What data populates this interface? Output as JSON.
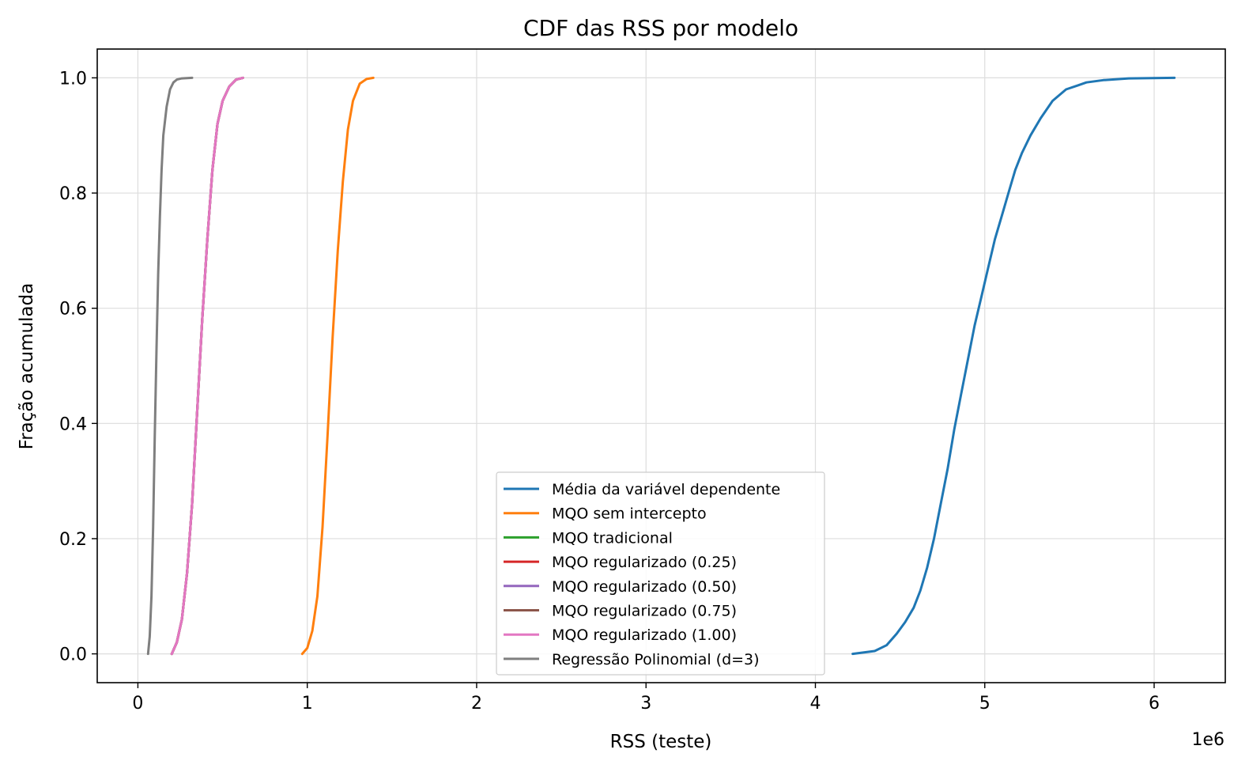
{
  "chart_data": {
    "type": "line",
    "title": "CDF das RSS por modelo",
    "xlabel": "RSS (teste)",
    "ylabel": "Fração acumulada",
    "x_offset_label": "1e6",
    "xlim": [
      -0.24,
      6.42
    ],
    "ylim": [
      -0.05,
      1.05
    ],
    "xticks": [
      0,
      1,
      2,
      3,
      4,
      5,
      6
    ],
    "xtick_labels": [
      "0",
      "1",
      "2",
      "3",
      "4",
      "5",
      "6"
    ],
    "yticks": [
      0.0,
      0.2,
      0.4,
      0.6,
      0.8,
      1.0
    ],
    "ytick_labels": [
      "0.0",
      "0.2",
      "0.4",
      "0.6",
      "0.8",
      "1.0"
    ],
    "grid": true,
    "legend_position": "lower-center",
    "series": [
      {
        "name": "Média da variável dependente",
        "color": "#1f77b4",
        "x": [
          4.22,
          4.35,
          4.42,
          4.48,
          4.53,
          4.58,
          4.62,
          4.66,
          4.7,
          4.74,
          4.78,
          4.82,
          4.86,
          4.9,
          4.94,
          4.98,
          5.02,
          5.06,
          5.1,
          5.14,
          5.18,
          5.22,
          5.27,
          5.33,
          5.4,
          5.48,
          5.55,
          5.6,
          5.7,
          5.85,
          6.12
        ],
        "y": [
          0.0,
          0.005,
          0.015,
          0.035,
          0.055,
          0.08,
          0.11,
          0.15,
          0.2,
          0.26,
          0.32,
          0.39,
          0.45,
          0.51,
          0.57,
          0.62,
          0.67,
          0.72,
          0.76,
          0.8,
          0.84,
          0.87,
          0.9,
          0.93,
          0.96,
          0.98,
          0.987,
          0.992,
          0.996,
          0.999,
          1.0
        ]
      },
      {
        "name": "MQO sem intercepto",
        "color": "#ff7f0e",
        "x": [
          0.97,
          1.0,
          1.03,
          1.06,
          1.09,
          1.12,
          1.15,
          1.18,
          1.21,
          1.24,
          1.27,
          1.31,
          1.35,
          1.39
        ],
        "y": [
          0.0,
          0.01,
          0.04,
          0.1,
          0.22,
          0.38,
          0.55,
          0.7,
          0.82,
          0.91,
          0.96,
          0.99,
          0.998,
          1.0
        ]
      },
      {
        "name": "MQO tradicional",
        "color": "#2ca02c",
        "x": [
          0.2,
          0.23,
          0.26,
          0.29,
          0.32,
          0.35,
          0.38,
          0.41,
          0.44,
          0.47,
          0.5,
          0.54,
          0.58,
          0.62
        ],
        "y": [
          0.0,
          0.02,
          0.06,
          0.14,
          0.26,
          0.42,
          0.58,
          0.72,
          0.84,
          0.92,
          0.96,
          0.985,
          0.997,
          1.0
        ]
      },
      {
        "name": "MQO regularizado (0.25)",
        "color": "#d62728",
        "x": [
          0.2,
          0.23,
          0.26,
          0.29,
          0.32,
          0.35,
          0.38,
          0.41,
          0.44,
          0.47,
          0.5,
          0.54,
          0.58,
          0.62
        ],
        "y": [
          0.0,
          0.02,
          0.06,
          0.14,
          0.26,
          0.42,
          0.58,
          0.72,
          0.84,
          0.92,
          0.96,
          0.985,
          0.997,
          1.0
        ]
      },
      {
        "name": "MQO regularizado (0.50)",
        "color": "#9467bd",
        "x": [
          0.2,
          0.23,
          0.26,
          0.29,
          0.32,
          0.35,
          0.38,
          0.41,
          0.44,
          0.47,
          0.5,
          0.54,
          0.58,
          0.62
        ],
        "y": [
          0.0,
          0.02,
          0.06,
          0.14,
          0.26,
          0.42,
          0.58,
          0.72,
          0.84,
          0.92,
          0.96,
          0.985,
          0.997,
          1.0
        ]
      },
      {
        "name": "MQO regularizado (0.75)",
        "color": "#8c564b",
        "x": [
          0.2,
          0.23,
          0.26,
          0.29,
          0.32,
          0.35,
          0.38,
          0.41,
          0.44,
          0.47,
          0.5,
          0.54,
          0.58,
          0.62
        ],
        "y": [
          0.0,
          0.02,
          0.06,
          0.14,
          0.26,
          0.42,
          0.58,
          0.72,
          0.84,
          0.92,
          0.96,
          0.985,
          0.997,
          1.0
        ]
      },
      {
        "name": "MQO regularizado (1.00)",
        "color": "#e377c2",
        "x": [
          0.2,
          0.23,
          0.26,
          0.29,
          0.32,
          0.35,
          0.38,
          0.41,
          0.44,
          0.47,
          0.5,
          0.54,
          0.58,
          0.62
        ],
        "y": [
          0.0,
          0.02,
          0.06,
          0.14,
          0.26,
          0.42,
          0.58,
          0.72,
          0.84,
          0.92,
          0.96,
          0.985,
          0.997,
          1.0
        ]
      },
      {
        "name": "Regressão Polinomial (d=3)",
        "color": "#7f7f7f",
        "x": [
          0.06,
          0.07,
          0.08,
          0.09,
          0.1,
          0.11,
          0.12,
          0.13,
          0.14,
          0.15,
          0.17,
          0.19,
          0.21,
          0.23,
          0.26,
          0.32
        ],
        "y": [
          0.0,
          0.03,
          0.1,
          0.22,
          0.38,
          0.53,
          0.66,
          0.76,
          0.84,
          0.9,
          0.95,
          0.98,
          0.992,
          0.997,
          0.999,
          1.0
        ]
      }
    ]
  }
}
